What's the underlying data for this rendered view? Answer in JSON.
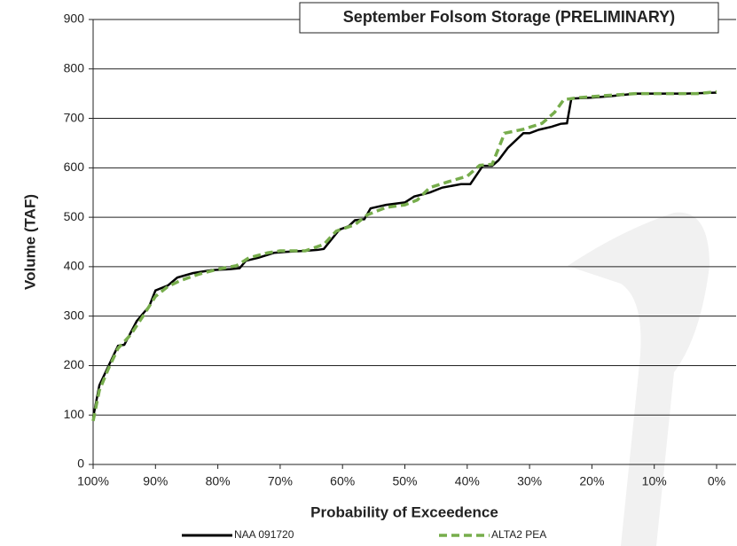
{
  "chart_data": {
    "type": "line",
    "title": "September Folsom Storage (PRELIMINARY)",
    "x_label": "Probability of Exceedence",
    "y_label": "Volume (TAF)",
    "xlim": [
      100,
      0
    ],
    "ylim": [
      0,
      900
    ],
    "xticks": [
      {
        "value": 100,
        "label": "100%"
      },
      {
        "value": 90,
        "label": "90%"
      },
      {
        "value": 80,
        "label": "80%"
      },
      {
        "value": 70,
        "label": "70%"
      },
      {
        "value": 60,
        "label": "60%"
      },
      {
        "value": 50,
        "label": "50%"
      },
      {
        "value": 40,
        "label": "40%"
      },
      {
        "value": 30,
        "label": "30%"
      },
      {
        "value": 20,
        "label": "20%"
      },
      {
        "value": 10,
        "label": "10%"
      },
      {
        "value": 0,
        "label": "0%"
      }
    ],
    "yticks": [
      0,
      100,
      200,
      300,
      400,
      500,
      600,
      700,
      800,
      900
    ],
    "grid": true,
    "series": [
      {
        "name": "NAA 091720",
        "color": "#000000",
        "dashed": false,
        "x": [
          100,
          99,
          97.5,
          96,
          95,
          93,
          91,
          90,
          88,
          86.5,
          84,
          81,
          78,
          76.5,
          75.5,
          73.5,
          71,
          69,
          66,
          64,
          63,
          60.5,
          59,
          58,
          56.5,
          55.5,
          53,
          50,
          48.5,
          46,
          44,
          41,
          39.5,
          37.5,
          36,
          35,
          33.5,
          31,
          30,
          28.5,
          26.5,
          25,
          24,
          23.3,
          20,
          17,
          13,
          10,
          5,
          0
        ],
        "values": [
          95,
          160,
          200,
          240,
          242,
          290,
          320,
          352,
          362,
          378,
          387,
          393,
          395,
          397,
          412,
          418,
          428,
          430,
          432,
          434,
          436,
          475,
          482,
          494,
          496,
          518,
          525,
          530,
          542,
          550,
          560,
          567,
          567,
          604,
          604,
          615,
          640,
          670,
          670,
          677,
          683,
          689,
          690,
          740,
          742,
          745,
          750,
          750,
          750,
          752
        ]
      },
      {
        "name": "ALTA2 PEA",
        "color": "#77ad4c",
        "dashed": true,
        "x": [
          100,
          99,
          97.5,
          96,
          94,
          92,
          90,
          88,
          86,
          83,
          80,
          77,
          75,
          72,
          70,
          66,
          63,
          61,
          58,
          56,
          53,
          50,
          48,
          46,
          43,
          40,
          38,
          36,
          34,
          31,
          28,
          26,
          24.5,
          22,
          18,
          13,
          8,
          3,
          0
        ],
        "values": [
          88,
          150,
          195,
          235,
          262,
          300,
          340,
          360,
          372,
          385,
          395,
          402,
          418,
          428,
          432,
          432,
          445,
          472,
          485,
          505,
          520,
          525,
          535,
          560,
          572,
          583,
          605,
          607,
          670,
          678,
          690,
          712,
          738,
          742,
          746,
          750,
          750,
          750,
          754
        ]
      }
    ]
  }
}
